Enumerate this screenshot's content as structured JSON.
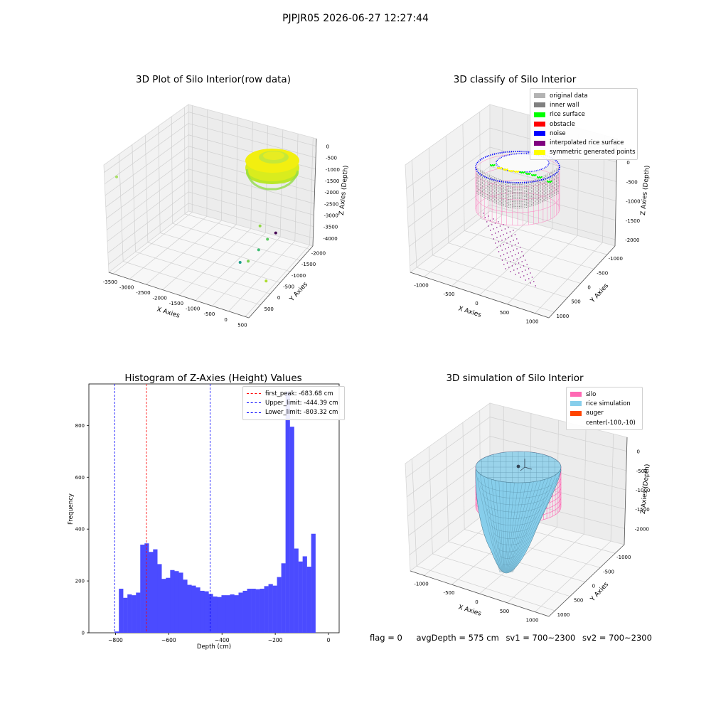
{
  "suptitle": "PJPJR05 2026-06-27 12:27:44",
  "chart_data": [
    {
      "type": "scatter",
      "title": "3D Plot of Silo Interior(row data)",
      "xlabel": "X Axies",
      "ylabel": "Y Axies",
      "zlabel": "Z Axies (Depth)",
      "x_ticks": [
        "-3500",
        "-3000",
        "-2500",
        "-2000",
        "-1500",
        "-1000",
        "-500",
        "0",
        "500"
      ],
      "y_ticks": [
        "500",
        "0",
        "-500",
        "-1000",
        "-1500",
        "-2000"
      ],
      "z_ticks": [
        "0",
        "-500",
        "-1000",
        "-1500",
        "-2000",
        "-2500",
        "-3000",
        "-3500",
        "-4000"
      ],
      "xlim": [
        -3600,
        700
      ],
      "ylim": [
        -2100,
        700
      ],
      "zlim": [
        -4100,
        100
      ],
      "outliers": [
        {
          "x": -3500,
          "y": 500,
          "z": -500
        },
        {
          "x": 400,
          "y": 300,
          "z": -2400
        },
        {
          "x": 300,
          "y": -300,
          "z": -2600
        },
        {
          "x": 500,
          "y": -400,
          "z": -2200
        },
        {
          "x": 200,
          "y": -500,
          "z": -1900
        },
        {
          "x": -200,
          "y": -200,
          "z": -3200
        },
        {
          "x": 600,
          "y": -200,
          "z": -3600
        },
        {
          "x": -300,
          "y": -1900,
          "z": -3800
        }
      ]
    },
    {
      "type": "scatter",
      "title": "3D classify of Silo Interior",
      "xlabel": "X Axies",
      "ylabel": "Y Axies",
      "zlabel": "Z Axies (Depth)",
      "x_ticks": [
        "-1000",
        "-500",
        "0",
        "500",
        "1000"
      ],
      "y_ticks": [
        "1000",
        "500",
        "0",
        "-500",
        "-1000"
      ],
      "z_ticks": [
        "0",
        "-500",
        "-1000",
        "-1500",
        "-2000"
      ],
      "legend": [
        {
          "label": "original data",
          "color": "#b3b3b3"
        },
        {
          "label": "inner wall",
          "color": "#808080"
        },
        {
          "label": "rice surface",
          "color": "#00ff00"
        },
        {
          "label": "obstacle",
          "color": "#ff0000"
        },
        {
          "label": "noise",
          "color": "#0000ff"
        },
        {
          "label": "interpolated rice surface",
          "color": "#800080"
        },
        {
          "label": "symmetric generated points",
          "color": "#ffff00"
        }
      ]
    },
    {
      "type": "bar",
      "title": "Histogram of Z-Axies (Height) Values",
      "xlabel": "Depth (cm)",
      "ylabel": "Frequency",
      "xlim": [
        -900,
        40
      ],
      "ylim": [
        0,
        960
      ],
      "x_ticks": [
        -800,
        -600,
        -400,
        -200,
        0
      ],
      "y_ticks": [
        0,
        200,
        400,
        600,
        800
      ],
      "bin_start": -803.32,
      "bin_width": 16.05,
      "values": [
        5,
        170,
        135,
        148,
        145,
        155,
        340,
        345,
        312,
        322,
        265,
        208,
        212,
        242,
        238,
        232,
        205,
        185,
        182,
        175,
        162,
        160,
        150,
        140,
        138,
        145,
        145,
        148,
        145,
        155,
        162,
        170,
        170,
        168,
        170,
        180,
        188,
        182,
        215,
        268,
        930,
        795,
        325,
        275,
        295,
        255,
        382
      ],
      "lines": [
        {
          "label": "first_peak: -683.68 cm",
          "value": -683.68,
          "color": "#ff0000"
        },
        {
          "label": "Upper_limit: -444.39 cm",
          "value": -444.39,
          "color": "#0000ff"
        },
        {
          "label": "Lower_limit: -803.32 cm",
          "value": -803.32,
          "color": "#0000ff"
        }
      ],
      "bar_color": "#4b4bff"
    },
    {
      "type": "scatter",
      "title": "3D simulation of Silo Interior",
      "xlabel": "X Axies",
      "ylabel": "Y Axies",
      "zlabel": "Z Axies (Depth)",
      "x_ticks": [
        "-1000",
        "-500",
        "0",
        "500",
        "1000"
      ],
      "y_ticks": [
        "1000",
        "500",
        "0",
        "-500",
        "-1000"
      ],
      "z_ticks": [
        "0",
        "-500",
        "-1000",
        "-1500",
        "-2000"
      ],
      "legend": [
        {
          "label": "silo",
          "color": "#ff69b4"
        },
        {
          "label": "rice simulation",
          "color": "#87ceeb"
        },
        {
          "label": "auger",
          "color": "#ff4500"
        },
        {
          "label": "center(-100,-10)",
          "color": ""
        }
      ]
    }
  ],
  "footer": {
    "flag": "flag = 0",
    "avg": "avgDepth = 575 cm",
    "sv1": "sv1 = 700~2300",
    "sv2": "sv2 = 700~2300"
  }
}
